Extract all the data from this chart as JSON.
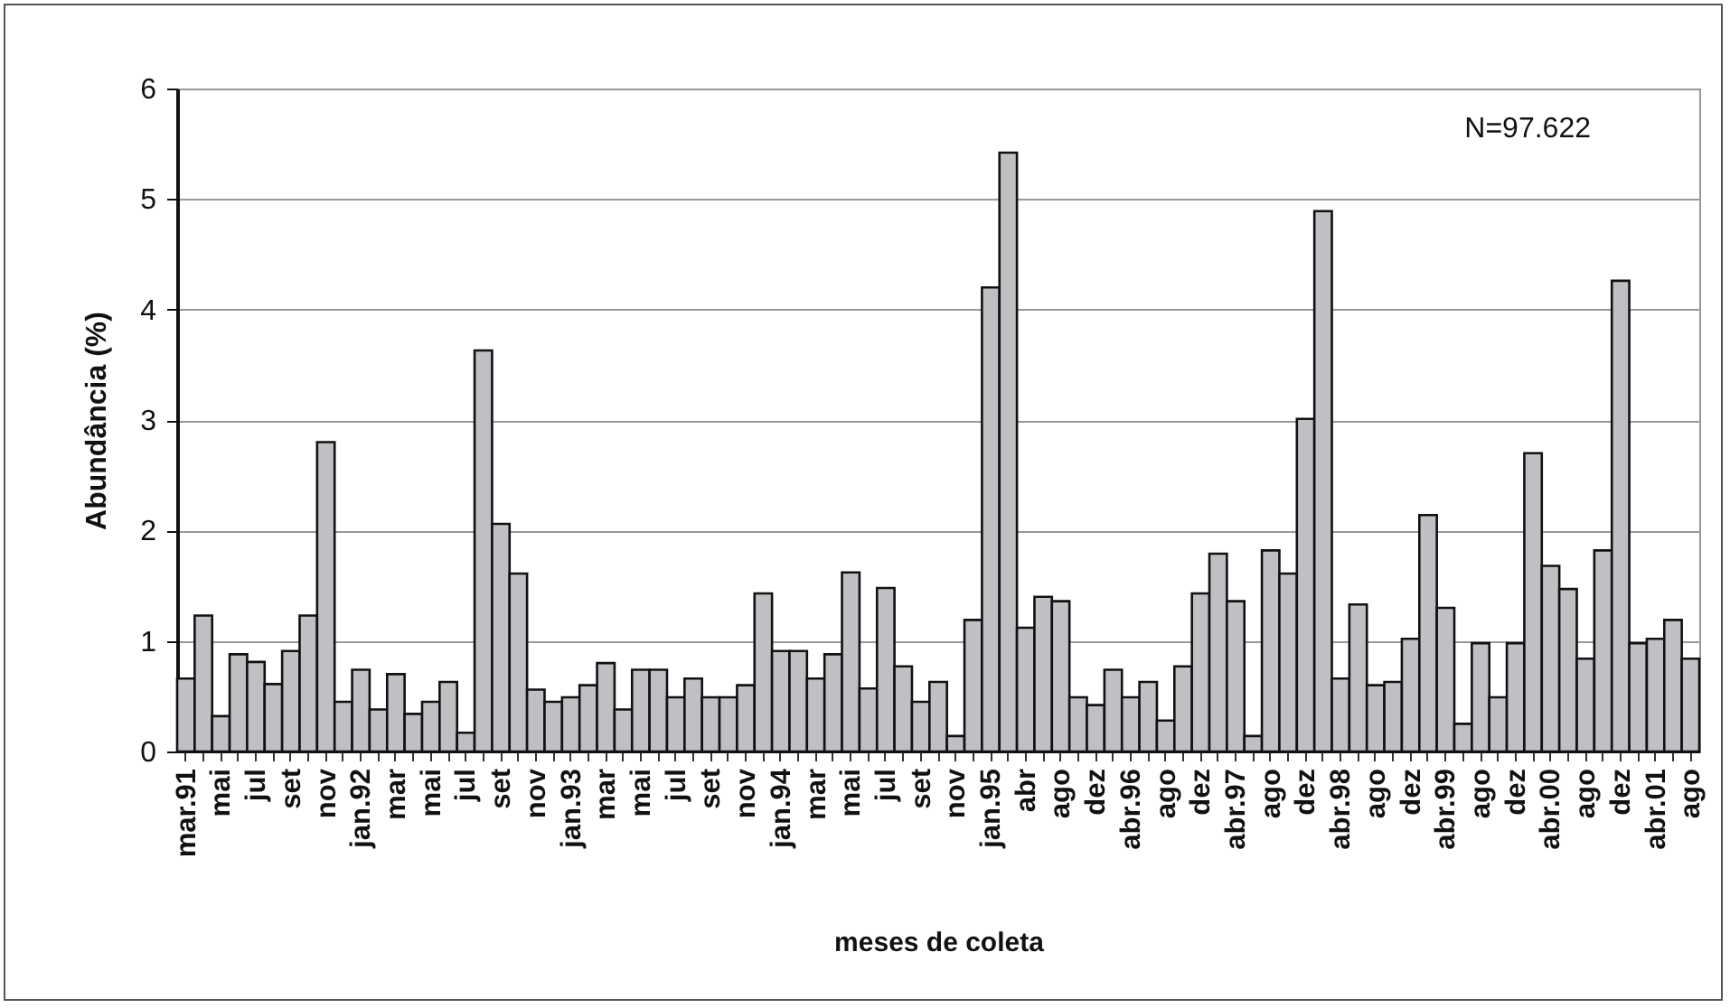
{
  "chart_data": {
    "type": "bar",
    "xlabel": "meses de coleta",
    "ylabel": "Abundância (%)",
    "annotations": [
      "N=97.622"
    ],
    "categories": [
      "mar.91",
      null,
      "mai",
      null,
      "jul",
      null,
      "set",
      null,
      "nov",
      null,
      "jan.92",
      null,
      "mar",
      null,
      "mai",
      null,
      "jul",
      null,
      "set",
      null,
      "nov",
      null,
      "jan.93",
      null,
      "mar",
      null,
      "mai",
      null,
      "jul",
      null,
      "set",
      null,
      "nov",
      null,
      "jan.94",
      null,
      "mar",
      null,
      "mai",
      null,
      "jul",
      null,
      "set",
      null,
      "nov",
      null,
      "jan.95",
      null,
      "abr",
      null,
      "ago",
      null,
      "dez",
      null,
      "abr.96",
      null,
      "ago",
      null,
      "dez",
      null,
      "abr.97",
      null,
      "ago",
      null,
      "dez",
      null,
      "abr.98",
      null,
      "ago",
      null,
      "dez",
      null,
      "abr.99",
      null,
      "ago",
      null,
      "dez",
      null,
      "abr.00",
      null,
      "ago",
      null,
      "dez",
      null,
      "abr.01",
      null,
      "ago"
    ],
    "values": [
      0.66,
      1.23,
      0.32,
      0.88,
      0.81,
      0.61,
      0.91,
      1.23,
      2.8,
      0.45,
      0.74,
      0.38,
      0.7,
      0.34,
      0.45,
      0.63,
      0.17,
      3.63,
      2.06,
      1.61,
      0.56,
      0.45,
      0.49,
      0.6,
      0.8,
      0.38,
      0.74,
      0.74,
      0.49,
      0.66,
      0.49,
      0.49,
      0.6,
      1.43,
      0.91,
      0.91,
      0.66,
      0.88,
      1.62,
      0.57,
      1.48,
      0.77,
      0.45,
      0.63,
      0.14,
      1.19,
      4.2,
      5.42,
      1.12,
      1.4,
      1.36,
      0.49,
      0.42,
      0.74,
      0.49,
      0.63,
      0.28,
      0.77,
      1.43,
      1.79,
      1.36,
      0.14,
      1.82,
      1.61,
      3.01,
      4.89,
      0.66,
      1.33,
      0.6,
      0.63,
      1.02,
      2.14,
      1.3,
      0.25,
      0.98,
      0.49,
      0.98,
      2.7,
      1.68,
      1.47,
      0.84,
      1.82,
      4.26,
      0.98,
      1.02,
      1.19,
      0.84
    ],
    "color": "#c0c0c4",
    "ylim": [
      0,
      6
    ],
    "yticks": [
      0,
      1,
      2,
      3,
      4,
      5,
      6
    ],
    "grid": "y"
  }
}
